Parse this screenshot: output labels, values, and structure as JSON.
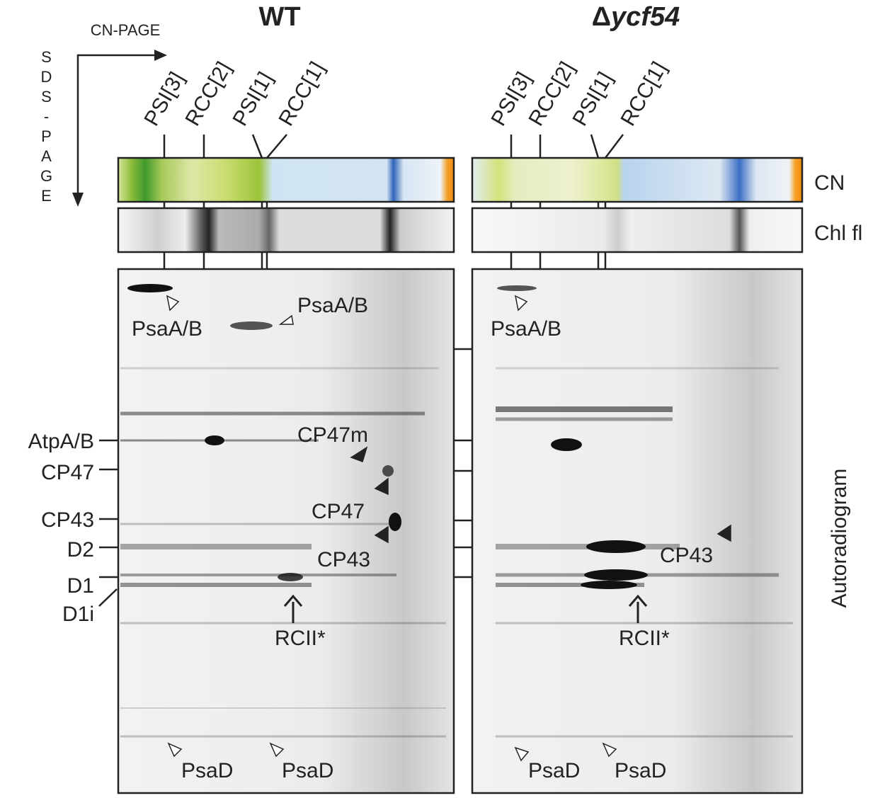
{
  "axes": {
    "horizontal": "CN-PAGE",
    "vertical": "SDS-PAGE"
  },
  "strip_labels": [
    "CN",
    "Chl fl"
  ],
  "side_label": "Autoradiogram",
  "marker_labels": [
    "AtpA/B",
    "CP47",
    "CP43",
    "D2",
    "D1",
    "D1i"
  ],
  "panels": [
    {
      "title": "WT",
      "complexes": [
        "PSI[3]",
        "RCC[2]",
        "PSI[1]",
        "RCC[1]"
      ],
      "spot_labels": [
        "PsaA/B",
        "PsaA/B",
        "CP47m",
        "CP47",
        "CP43",
        "RCII*",
        "PsaD",
        "PsaD"
      ]
    },
    {
      "title_symbol": "Δ",
      "title_gene": "ycf54",
      "complexes": [
        "PSI[3]",
        "RCC[2]",
        "PSI[1]",
        "RCC[1]"
      ],
      "spot_labels": [
        "PsaA/B",
        "CP43",
        "RCII*",
        "PsaD",
        "PsaD"
      ]
    }
  ]
}
